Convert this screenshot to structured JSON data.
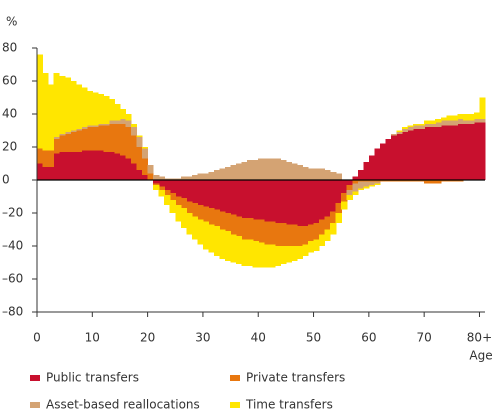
{
  "chart_data": {
    "type": "stacked-step",
    "y_label": "%",
    "x_label": "Age",
    "x": [
      0,
      1,
      2,
      3,
      4,
      5,
      6,
      7,
      8,
      9,
      10,
      11,
      12,
      13,
      14,
      15,
      16,
      17,
      18,
      19,
      20,
      21,
      22,
      23,
      24,
      25,
      26,
      27,
      28,
      29,
      30,
      31,
      32,
      33,
      34,
      35,
      36,
      37,
      38,
      39,
      40,
      41,
      42,
      43,
      44,
      45,
      46,
      47,
      48,
      49,
      50,
      51,
      52,
      53,
      54,
      55,
      56,
      57,
      58,
      59,
      60,
      61,
      62,
      63,
      64,
      65,
      66,
      67,
      68,
      69,
      70,
      71,
      72,
      73,
      74,
      75,
      76,
      77,
      78,
      79,
      80
    ],
    "xlim": [
      0,
      81
    ],
    "xticks": [
      0,
      10,
      20,
      30,
      40,
      50,
      60,
      70,
      {
        "value": 80,
        "label": "80+"
      }
    ],
    "ylim": [
      -80,
      80
    ],
    "yticks": [
      {
        "value": -80,
        "label": "–80"
      },
      {
        "value": -60,
        "label": "–60"
      },
      {
        "value": -40,
        "label": "–40"
      },
      {
        "value": -20,
        "label": "–20"
      },
      0,
      20,
      40,
      60,
      80
    ],
    "series": [
      {
        "name": "Public transfers",
        "color": "#c8102e",
        "values": [
          10,
          8,
          8,
          16,
          17,
          17,
          17,
          17,
          18,
          18,
          18,
          18,
          17,
          17,
          16,
          15,
          13,
          10,
          6,
          3,
          0,
          -2,
          -4,
          -6,
          -8,
          -10,
          -11,
          -13,
          -14,
          -15,
          -16,
          -17,
          -18,
          -19,
          -20,
          -21,
          -22,
          -23,
          -23,
          -24,
          -24,
          -25,
          -25,
          -26,
          -26,
          -27,
          -27,
          -28,
          -28,
          -27,
          -26,
          -24,
          -22,
          -19,
          -14,
          -8,
          -3,
          2,
          6,
          11,
          15,
          19,
          22,
          25,
          27,
          28,
          29,
          30,
          31,
          31,
          32,
          32,
          32,
          33,
          33,
          33,
          34,
          34,
          34,
          35,
          35
        ]
      },
      {
        "name": "Private transfers",
        "color": "#e8770f",
        "values": [
          9,
          10,
          10,
          9,
          10,
          11,
          12,
          13,
          13,
          14,
          14,
          15,
          16,
          17,
          18,
          19,
          19,
          17,
          14,
          10,
          4,
          -1,
          -2,
          -3,
          -4,
          -5,
          -6,
          -7,
          -8,
          -9,
          -9,
          -10,
          -10,
          -11,
          -11,
          -12,
          -12,
          -13,
          -13,
          -13,
          -14,
          -14,
          -14,
          -14,
          -14,
          -13,
          -13,
          -12,
          -11,
          -10,
          -10,
          -9,
          -8,
          -7,
          -6,
          -5,
          -3,
          -2,
          -1,
          -1,
          -1,
          -1,
          -1,
          -1,
          -1,
          -1,
          -1,
          -1,
          -1,
          -1,
          -2,
          -2,
          -2,
          -1,
          -1,
          -1,
          -1,
          0,
          0,
          0,
          0
        ]
      },
      {
        "name": "Asset-based reallocations",
        "color": "#d4a373",
        "values": [
          0,
          0,
          0,
          1,
          1,
          1,
          1,
          1,
          1,
          1,
          1,
          1,
          1,
          2,
          2,
          3,
          4,
          5,
          6,
          6,
          5,
          3,
          2,
          1,
          1,
          1,
          2,
          2,
          3,
          4,
          4,
          5,
          6,
          7,
          8,
          9,
          10,
          11,
          12,
          12,
          13,
          13,
          13,
          13,
          12,
          11,
          10,
          9,
          8,
          7,
          7,
          7,
          6,
          5,
          4,
          0,
          -3,
          -5,
          -4,
          -3,
          -2,
          -1,
          0,
          0,
          1,
          1,
          2,
          2,
          2,
          2,
          2,
          2,
          3,
          3,
          3,
          3,
          3,
          2,
          2,
          2,
          2
        ]
      },
      {
        "name": "Time transfers",
        "color": "#ffe600",
        "values": [
          57,
          47,
          40,
          39,
          35,
          33,
          30,
          27,
          24,
          21,
          20,
          18,
          17,
          13,
          10,
          6,
          4,
          2,
          1,
          1,
          0,
          -3,
          -4,
          -6,
          -8,
          -10,
          -12,
          -13,
          -14,
          -15,
          -17,
          -17,
          -18,
          -18,
          -18,
          -17,
          -17,
          -16,
          -16,
          -16,
          -15,
          -14,
          -14,
          -12,
          -11,
          -10,
          -9,
          -8,
          -7,
          -7,
          -7,
          -7,
          -7,
          -7,
          -6,
          -5,
          -3,
          -2,
          -1,
          -1,
          -1,
          -1,
          0,
          0,
          0,
          1,
          1,
          1,
          1,
          1,
          2,
          2,
          2,
          2,
          3,
          3,
          3,
          4,
          4,
          4,
          13
        ]
      }
    ]
  }
}
